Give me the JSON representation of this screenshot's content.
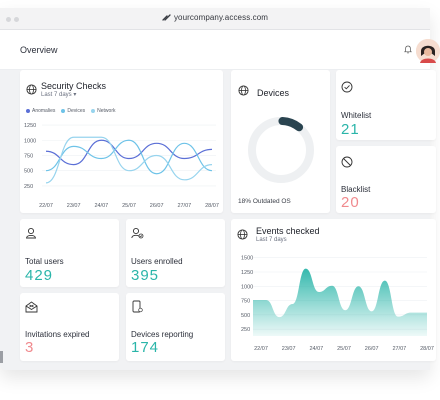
{
  "browser": {
    "url": "yourcompany.access.com"
  },
  "header": {
    "title": "Overview"
  },
  "security_checks": {
    "title": "Security Checks",
    "period": "Last 7 days",
    "legend": [
      "Anomalies",
      "Devices",
      "Network"
    ],
    "colors": {
      "Anomalies": "#5b6fd6",
      "Devices": "#6ec3e8",
      "Network": "#97d4ee"
    }
  },
  "devices": {
    "title": "Devices",
    "outdated_text": "18% Outdated OS",
    "outdated_fraction": 0.18
  },
  "whitelist": {
    "label": "Whitelist",
    "value": "21"
  },
  "blacklist": {
    "label": "Blacklist",
    "value": "20"
  },
  "total_users": {
    "label": "Total users",
    "value": "429"
  },
  "users_enrolled": {
    "label": "Users enrolled",
    "value": "395"
  },
  "invitations_expired": {
    "label": "Invitations expired",
    "value": "3"
  },
  "devices_reporting": {
    "label": "Devices reporting",
    "value": "174"
  },
  "events_checked": {
    "title": "Events checked",
    "period": "Last 7 days"
  },
  "chart_data": [
    {
      "type": "line",
      "title": "Security Checks",
      "x": [
        "22/07",
        "23/07",
        "24/07",
        "25/07",
        "26/07",
        "27/07",
        "28/07"
      ],
      "yticks": [
        250,
        500,
        750,
        1000,
        1250
      ],
      "ylim": [
        150,
        1300
      ],
      "series": [
        {
          "name": "Anomalies",
          "values": [
            820,
            600,
            1000,
            700,
            950,
            700,
            850
          ]
        },
        {
          "name": "Devices",
          "values": [
            500,
            900,
            700,
            1000,
            450,
            950,
            500
          ]
        },
        {
          "name": "Network",
          "values": [
            300,
            1050,
            1050,
            500,
            750,
            350,
            600
          ]
        }
      ]
    },
    {
      "type": "area",
      "title": "Events checked",
      "x": [
        "22/07",
        "23/07",
        "24/07",
        "25/07",
        "26/07",
        "27/07",
        "28/07"
      ],
      "yticks": [
        250,
        500,
        750,
        1000,
        1250,
        1500
      ],
      "ylim": [
        130,
        1600
      ],
      "points": [
        [
          0,
          760
        ],
        [
          0.5,
          760
        ],
        [
          1.0,
          460
        ],
        [
          1.5,
          690
        ],
        [
          2.0,
          1310
        ],
        [
          2.5,
          900
        ],
        [
          3.0,
          1010
        ],
        [
          3.5,
          580
        ],
        [
          4.0,
          1000
        ],
        [
          4.5,
          560
        ],
        [
          5.0,
          1100
        ],
        [
          5.5,
          470
        ],
        [
          6.0,
          540
        ],
        [
          6.6,
          540
        ]
      ],
      "color": "#2ab5a9"
    }
  ]
}
